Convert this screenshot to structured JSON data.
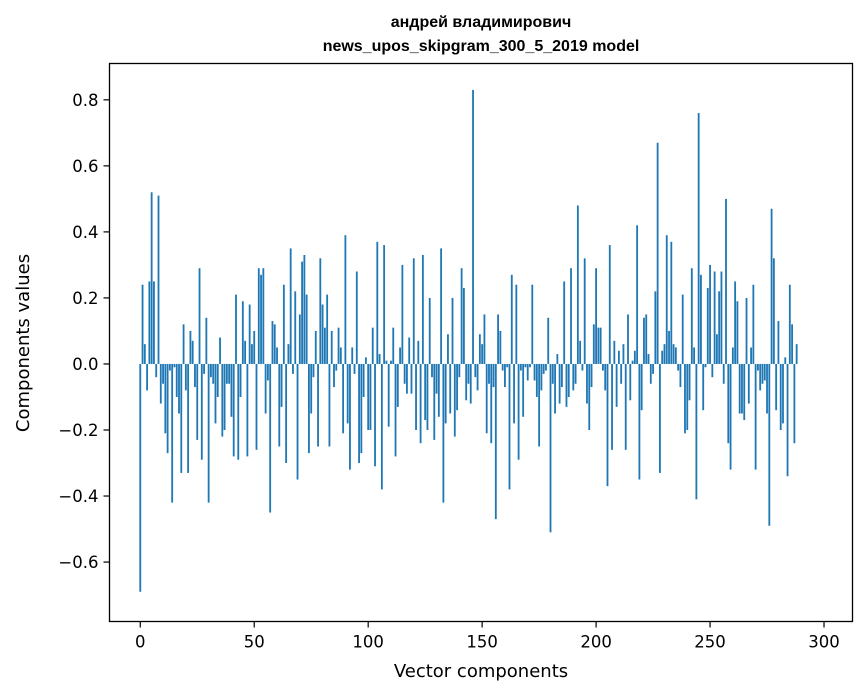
{
  "chart_data": {
    "type": "bar",
    "title": "андрей владимирович",
    "subtitle": "news_upos_skipgram_300_5_2019 model",
    "xlabel": "Vector components",
    "ylabel": "Components values",
    "xlim": [
      -13.5,
      312.5
    ],
    "ylim": [
      -0.78,
      0.91
    ],
    "xticks": [
      0,
      50,
      100,
      150,
      200,
      250,
      300
    ],
    "xtick_labels": [
      "0",
      "50",
      "100",
      "150",
      "200",
      "250",
      "300"
    ],
    "yticks": [
      -0.6,
      -0.4,
      -0.2,
      0.0,
      0.2,
      0.4,
      0.6,
      0.8
    ],
    "ytick_labels": [
      "−0.6",
      "−0.4",
      "−0.2",
      "0.0",
      "0.2",
      "0.4",
      "0.6",
      "0.8"
    ],
    "grid": false,
    "color": "#1f77b4",
    "values": [
      -0.69,
      0.24,
      0.06,
      -0.08,
      0.25,
      0.52,
      0.25,
      -0.04,
      0.51,
      -0.12,
      -0.06,
      -0.21,
      -0.27,
      -0.02,
      -0.42,
      -0.01,
      -0.1,
      -0.15,
      -0.33,
      0.12,
      -0.08,
      -0.33,
      0.1,
      0.07,
      -0.07,
      -0.23,
      0.29,
      -0.29,
      -0.03,
      0.14,
      -0.42,
      -0.04,
      -0.06,
      -0.18,
      -0.1,
      0.08,
      -0.22,
      -0.2,
      -0.06,
      -0.06,
      -0.16,
      -0.28,
      0.21,
      -0.29,
      -0.1,
      0.19,
      0.07,
      -0.28,
      0.18,
      0.06,
      0.1,
      -0.26,
      0.29,
      0.27,
      0.29,
      -0.15,
      -0.05,
      -0.45,
      0.13,
      0.12,
      0.05,
      -0.25,
      -0.13,
      0.24,
      -0.3,
      0.06,
      0.35,
      -0.03,
      0.22,
      -0.35,
      0.15,
      0.31,
      0.33,
      0.21,
      -0.27,
      -0.15,
      -0.04,
      0.1,
      -0.25,
      0.32,
      0.18,
      0.11,
      0.21,
      -0.25,
      0.1,
      -0.07,
      -0.02,
      0.11,
      0.05,
      -0.21,
      0.39,
      -0.18,
      -0.32,
      0.05,
      -0.03,
      0.28,
      -0.3,
      -0.27,
      -0.1,
      0.02,
      -0.2,
      -0.2,
      0.11,
      -0.31,
      0.37,
      0.03,
      -0.38,
      0.36,
      0.01,
      -0.19,
      0.01,
      0.11,
      -0.28,
      -0.13,
      0.05,
      0.3,
      -0.06,
      -0.09,
      0.08,
      -0.09,
      0.32,
      -0.2,
      0.07,
      -0.24,
      0.33,
      -0.17,
      -0.2,
      0.2,
      -0.04,
      -0.23,
      -0.09,
      -0.16,
      0.35,
      -0.42,
      -0.18,
      0.09,
      -0.15,
      0.2,
      -0.22,
      -0.14,
      -0.04,
      0.29,
      0.23,
      -0.11,
      -0.06,
      -0.12,
      0.83,
      -0.04,
      -0.08,
      0.09,
      0.06,
      0.15,
      -0.21,
      -0.06,
      -0.24,
      -0.07,
      -0.47,
      0.15,
      0.1,
      -0.02,
      -0.07,
      -0.01,
      -0.38,
      0.27,
      -0.18,
      0.24,
      -0.29,
      -0.02,
      -0.16,
      -0.01,
      -0.05,
      -0.01,
      0.24,
      -0.05,
      -0.1,
      -0.25,
      -0.08,
      -0.03,
      -0.02,
      0.14,
      -0.51,
      -0.06,
      -0.15,
      0.03,
      -0.12,
      -0.07,
      0.25,
      -0.13,
      -0.1,
      0.29,
      -0.08,
      -0.06,
      0.48,
      0.07,
      -0.02,
      0.32,
      -0.12,
      -0.2,
      -0.07,
      0.12,
      0.29,
      0.11,
      0.11,
      -0.02,
      -0.08,
      -0.37,
      0.36,
      -0.26,
      0.07,
      -0.13,
      0.04,
      -0.06,
      0.06,
      -0.26,
      0.15,
      -0.11,
      0.01,
      0.04,
      0.42,
      -0.35,
      -0.14,
      0.14,
      0.15,
      0.03,
      -0.06,
      -0.03,
      0.22,
      0.67,
      -0.33,
      0.04,
      0.06,
      0.39,
      0.1,
      0.37,
      0.06,
      0.05,
      -0.02,
      -0.07,
      0.21,
      -0.21,
      -0.2,
      -0.11,
      0.29,
      0.05,
      -0.41,
      0.76,
      0.27,
      -0.14,
      -0.01,
      0.23,
      0.3,
      -0.04,
      0.28,
      0.09,
      0.22,
      0.28,
      -0.06,
      0.5,
      -0.24,
      -0.32,
      0.05,
      0.25,
      0.19,
      -0.15,
      -0.15,
      -0.17,
      0.2,
      -0.12,
      0.05,
      0.24,
      -0.32,
      -0.02,
      -0.08,
      -0.06,
      -0.05,
      -0.15,
      -0.49,
      0.47,
      0.32,
      -0.14,
      0.13,
      -0.2,
      -0.18,
      0.02,
      -0.34,
      0.24,
      0.12,
      -0.24,
      0.06
    ]
  }
}
